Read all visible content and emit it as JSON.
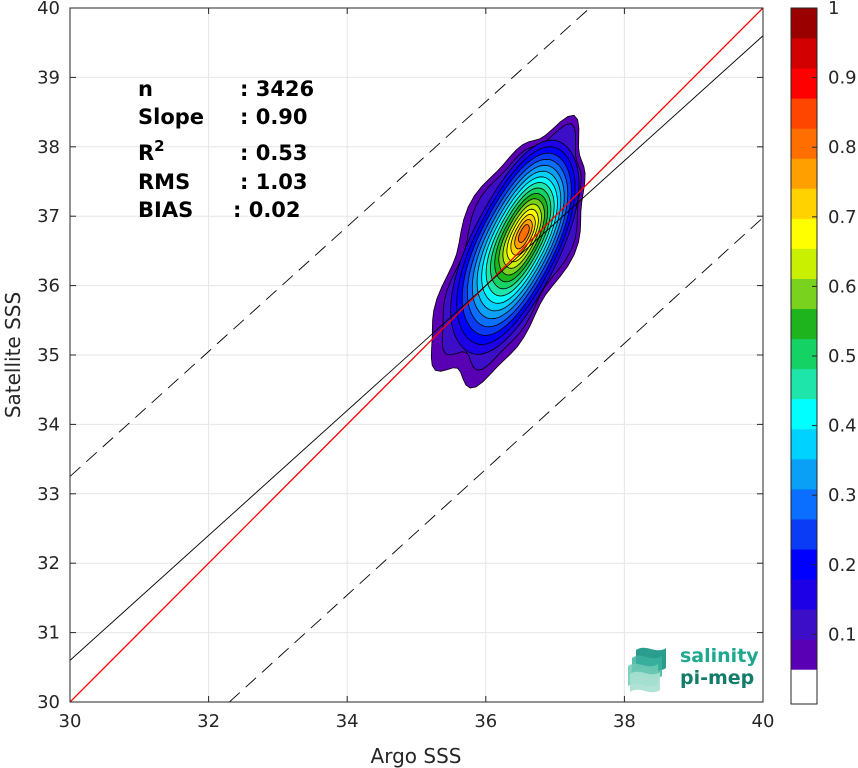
{
  "chart_data": {
    "type": "heatmap",
    "subtype": "normalized-density-contour-scatter",
    "xlabel": "Argo SSS",
    "ylabel": "Satellite SSS",
    "xlim": [
      30,
      40
    ],
    "ylim": [
      30,
      40
    ],
    "xticks": [
      "30",
      "32",
      "34",
      "36",
      "38",
      "40"
    ],
    "yticks": [
      "30",
      "31",
      "32",
      "33",
      "34",
      "35",
      "36",
      "37",
      "38",
      "39",
      "40"
    ],
    "grid": true,
    "density": {
      "center": [
        36.55,
        36.75
      ],
      "contour_levels": [
        0.05,
        0.1,
        0.15,
        0.2,
        0.25,
        0.3,
        0.35,
        0.4,
        0.45,
        0.5,
        0.55,
        0.6,
        0.65,
        0.7,
        0.75,
        0.8,
        0.85,
        0.9
      ],
      "outer_extent": {
        "x": [
          35.5,
          37.2
        ],
        "y": [
          34.6,
          38.3
        ]
      }
    },
    "lines": [
      {
        "name": "1:1",
        "type": "y=x",
        "color": "#ff0000",
        "style": "solid"
      },
      {
        "name": "fit",
        "points": [
          [
            30,
            30.6
          ],
          [
            40,
            39.6
          ]
        ],
        "color": "#000000",
        "style": "solid"
      },
      {
        "name": "upper",
        "points": [
          [
            30,
            33.25
          ],
          [
            37.5,
            40
          ]
        ],
        "color": "#000000",
        "style": "dashed"
      },
      {
        "name": "lower",
        "points": [
          [
            32.3,
            30
          ],
          [
            40,
            36.98
          ]
        ],
        "color": "#000000",
        "style": "dashed"
      }
    ],
    "stats": [
      {
        "label": "n",
        "value": "3426"
      },
      {
        "label": "Slope",
        "value": "0.90"
      },
      {
        "label": "R",
        "sup": "2",
        "value": "0.53"
      },
      {
        "label": "RMS",
        "value": "1.03"
      },
      {
        "label": "BIAS",
        "value": "0.02"
      }
    ],
    "colorbar": {
      "ticks": [
        "0.1",
        "0.2",
        "0.3",
        "0.4",
        "0.5",
        "0.6",
        "0.7",
        "0.8",
        "0.9",
        "1"
      ],
      "range": [
        0,
        1
      ],
      "empty_below": 0.05,
      "colors": [
        "#ffffff",
        "#5a00b4",
        "#3c0ec8",
        "#1e00e6",
        "#0000ff",
        "#0a3cf5",
        "#0a6eff",
        "#0aa0f5",
        "#00d2ff",
        "#00ffff",
        "#1ee6aa",
        "#14d264",
        "#1eb41e",
        "#78d21e",
        "#c8f000",
        "#ffff00",
        "#ffd200",
        "#ffa000",
        "#ff6e00",
        "#ff4600",
        "#ff0000",
        "#d20000",
        "#9a0000"
      ]
    },
    "logo": {
      "line1": "salinity",
      "line2": "pi-mep"
    }
  }
}
